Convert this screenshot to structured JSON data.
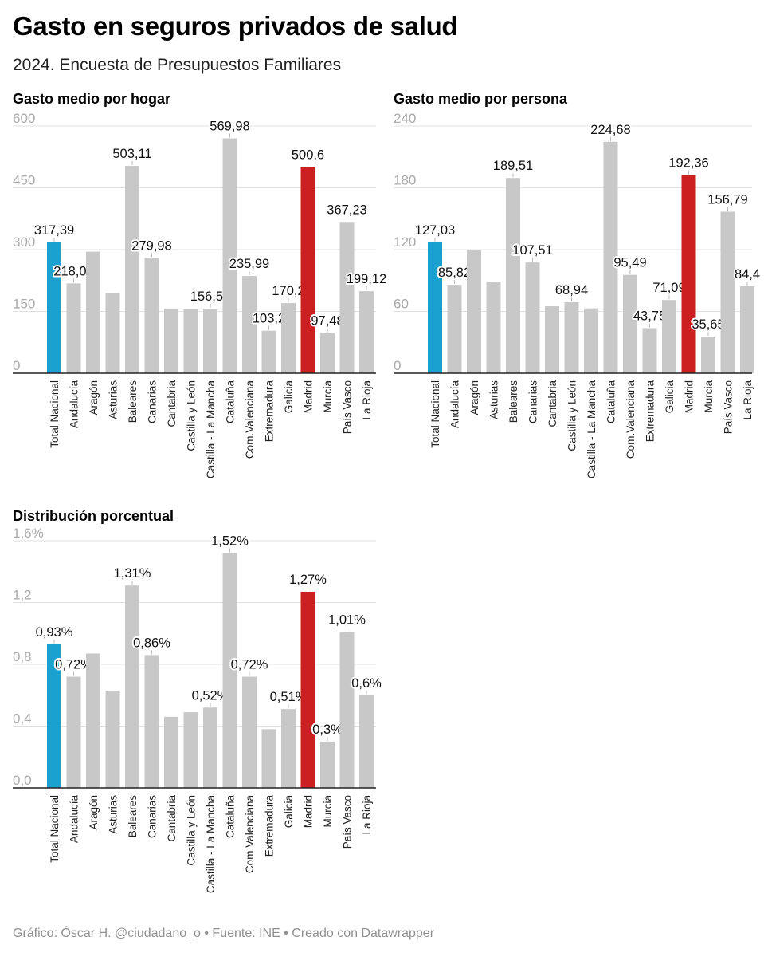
{
  "title": "Gasto en seguros privados de salud",
  "subtitle": "2024. Encuesta de Presupuestos Familiares",
  "footer": "Gráfico: Óscar H. @ciudadano_o • Fuente: INE • Creado con Datawrapper",
  "colors": {
    "highlight_total": "#1aa1d0",
    "highlight_madrid": "#cc1f1f",
    "bar": "#c8c8c8",
    "grid": "#e0e0e0",
    "axis": "#222222"
  },
  "chart_data": [
    {
      "type": "bar",
      "title": "Gasto medio por hogar",
      "ylim": [
        0,
        600
      ],
      "yticks": [
        0,
        150,
        300,
        450,
        600
      ],
      "ytick_labels": [
        "0",
        "150",
        "300",
        "450",
        "600"
      ],
      "grid": true,
      "categories": [
        "Total Nacional",
        "Andalucía",
        "Aragón",
        "Asturias",
        "Baleares",
        "Canarias",
        "Cantabria",
        "Castilla y León",
        "Castilla - La Mancha",
        "Cataluña",
        "Com.Valenciana",
        "Extremadura",
        "Galicia",
        "Madrid",
        "Murcia",
        "País Vasco",
        "La Rioja"
      ],
      "values": [
        317.39,
        218.02,
        295,
        195,
        503.11,
        279.98,
        157,
        155,
        156.54,
        569.98,
        235.99,
        103.2,
        170.2,
        500.6,
        97.48,
        367.23,
        199.12
      ],
      "data_labels": [
        "317,39",
        "218,02",
        "",
        "",
        "503,11",
        "279,98",
        "",
        "",
        "156,54",
        "569,98",
        "235,99",
        "103,2",
        "170,2",
        "500,6",
        "97,48",
        "367,23",
        "199,12"
      ]
    },
    {
      "type": "bar",
      "title": "Gasto medio por persona",
      "ylim": [
        0,
        240
      ],
      "yticks": [
        0,
        60,
        120,
        180,
        240
      ],
      "ytick_labels": [
        "0",
        "60",
        "120",
        "180",
        "240"
      ],
      "grid": true,
      "categories": [
        "Total Nacional",
        "Andalucía",
        "Aragón",
        "Asturias",
        "Baleares",
        "Canarias",
        "Cantabria",
        "Castilla y León",
        "Castilla - La Mancha",
        "Cataluña",
        "Com.Valenciana",
        "Extremadura",
        "Galicia",
        "Madrid",
        "Murcia",
        "País Vasco",
        "La Rioja"
      ],
      "values": [
        127.03,
        85.82,
        120,
        89,
        189.51,
        107.51,
        65,
        68.94,
        63,
        224.68,
        95.49,
        43.75,
        71.09,
        192.36,
        35.65,
        156.79,
        84.4
      ],
      "data_labels": [
        "127,03",
        "85,82",
        "",
        "",
        "189,51",
        "107,51",
        "",
        "68,94",
        "",
        "224,68",
        "95,49",
        "43,75",
        "71,09",
        "192,36",
        "35,65",
        "156,79",
        "84,4"
      ]
    },
    {
      "type": "bar",
      "title": "Distribución porcentual",
      "ylim": [
        0,
        1.6
      ],
      "yticks": [
        0,
        0.4,
        0.8,
        1.2,
        1.6
      ],
      "ytick_labels": [
        "0,0",
        "0,4",
        "0,8",
        "1,2",
        "1,6%"
      ],
      "grid": true,
      "categories": [
        "Total Nacional",
        "Andalucía",
        "Aragón",
        "Asturias",
        "Baleares",
        "Canarias",
        "Cantabria",
        "Castilla y León",
        "Castilla - La Mancha",
        "Cataluña",
        "Com.Valenciana",
        "Extremadura",
        "Galicia",
        "Madrid",
        "Murcia",
        "País Vasco",
        "La Rioja"
      ],
      "values": [
        0.93,
        0.72,
        0.87,
        0.63,
        1.31,
        0.86,
        0.46,
        0.49,
        0.52,
        1.52,
        0.72,
        0.38,
        0.51,
        1.27,
        0.3,
        1.01,
        0.6
      ],
      "data_labels": [
        "0,93%",
        "0,72%",
        "",
        "",
        "1,31%",
        "0,86%",
        "",
        "",
        "0,52%",
        "1,52%",
        "0,72%",
        "",
        "0,51%",
        "1,27%",
        "0,3%",
        "1,01%",
        "0,6%"
      ]
    }
  ]
}
